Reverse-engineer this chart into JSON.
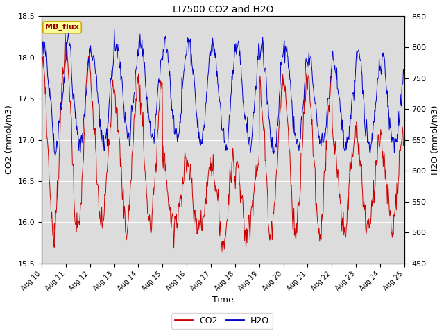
{
  "title": "LI7500 CO2 and H2O",
  "xlabel": "Time",
  "ylabel_left": "CO2 (mmol/m3)",
  "ylabel_right": "H2O (mmol/m3)",
  "ylim_left": [
    15.5,
    18.5
  ],
  "ylim_right": [
    450,
    850
  ],
  "yticks_left": [
    15.5,
    16.0,
    16.5,
    17.0,
    17.5,
    18.0,
    18.5
  ],
  "yticks_right": [
    450,
    500,
    550,
    600,
    650,
    700,
    750,
    800,
    850
  ],
  "xtick_labels": [
    "Aug 10",
    "Aug 11",
    "Aug 12",
    "Aug 13",
    "Aug 14",
    "Aug 15",
    "Aug 16",
    "Aug 17",
    "Aug 18",
    "Aug 19",
    "Aug 20",
    "Aug 21",
    "Aug 22",
    "Aug 23",
    "Aug 24",
    "Aug 25"
  ],
  "legend_labels": [
    "CO2",
    "H2O"
  ],
  "co2_color": "#cc0000",
  "h2o_color": "#0000cc",
  "plot_bg_color": "#dcdcdc",
  "fig_bg_color": "#ffffff",
  "grid_color": "#ffffff",
  "annotation_text": "MB_flux",
  "annotation_bg": "#ffff99",
  "annotation_border": "#ccaa00",
  "annotation_text_color": "#990000"
}
